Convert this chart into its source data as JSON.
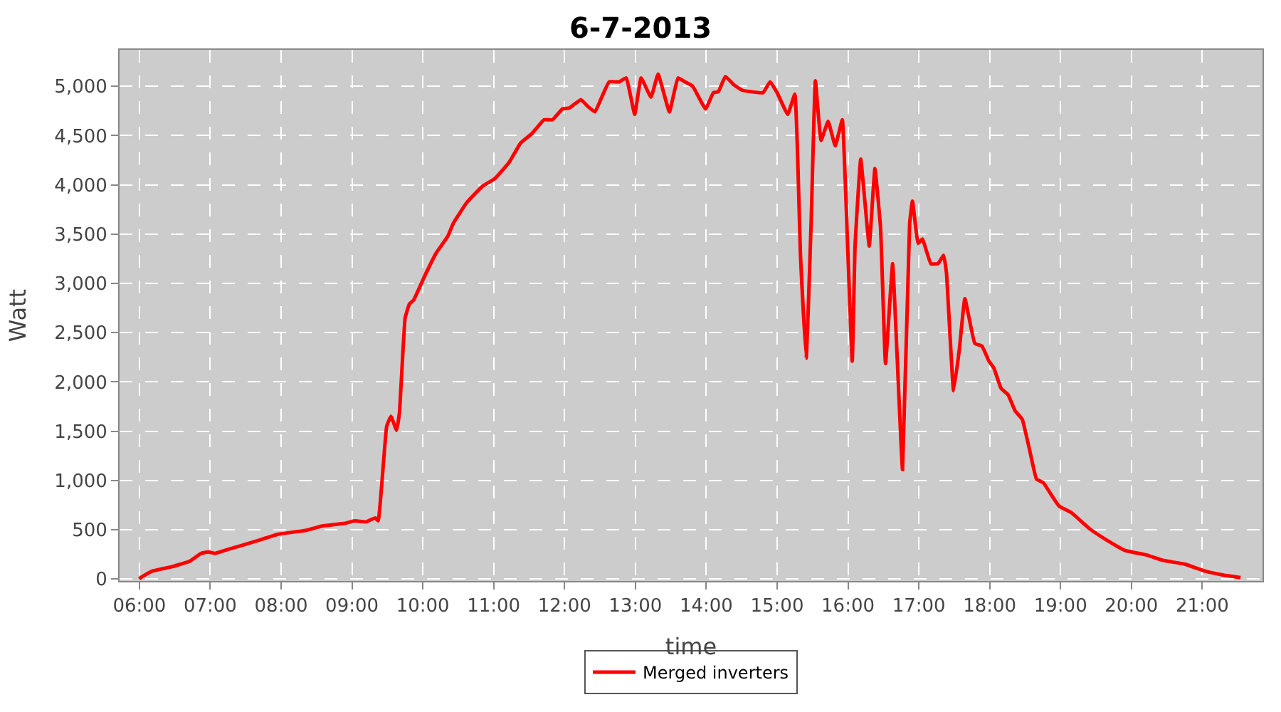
{
  "chart_data": {
    "type": "line",
    "title": "6-7-2013",
    "xlabel": "time",
    "ylabel": "Watt",
    "x": [
      6.0,
      6.02,
      6.18,
      6.46,
      6.71,
      6.87,
      6.97,
      7.07,
      7.25,
      7.65,
      7.96,
      8.36,
      8.56,
      8.9,
      9.04,
      9.2,
      9.33,
      9.37,
      9.49,
      9.55,
      9.63,
      9.67,
      9.75,
      9.81,
      9.87,
      10.03,
      10.19,
      10.35,
      10.43,
      10.62,
      10.84,
      11.02,
      11.22,
      11.38,
      11.54,
      11.71,
      11.83,
      11.97,
      12.07,
      12.23,
      12.33,
      12.43,
      12.51,
      12.63,
      12.77,
      12.87,
      12.99,
      13.08,
      13.22,
      13.32,
      13.48,
      13.6,
      13.7,
      13.81,
      13.99,
      14.1,
      14.17,
      14.27,
      14.39,
      14.51,
      14.8,
      14.9,
      15.0,
      15.15,
      15.25,
      15.33,
      15.41,
      15.48,
      15.54,
      15.62,
      15.72,
      15.82,
      15.92,
      15.96,
      16.06,
      16.1,
      16.18,
      16.3,
      16.38,
      16.46,
      16.53,
      16.63,
      16.69,
      16.77,
      16.87,
      16.91,
      16.99,
      17.05,
      17.17,
      17.27,
      17.35,
      17.39,
      17.49,
      17.57,
      17.65,
      17.79,
      17.89,
      17.99,
      18.06,
      18.16,
      18.26,
      18.36,
      18.46,
      18.56,
      18.66,
      18.76,
      18.86,
      18.98,
      19.15,
      19.41,
      19.64,
      19.91,
      20.21,
      20.44,
      20.76,
      21.04,
      21.3,
      21.54
    ],
    "series": [
      {
        "name": "Merged inverters",
        "color": "#ff0000",
        "values": [
          0,
          15,
          80,
          125,
          180,
          260,
          275,
          260,
          300,
          385,
          455,
          495,
          535,
          565,
          590,
          580,
          620,
          590,
          1550,
          1650,
          1510,
          1690,
          2650,
          2790,
          2830,
          3080,
          3310,
          3475,
          3610,
          3820,
          3985,
          4065,
          4230,
          4425,
          4520,
          4660,
          4660,
          4770,
          4780,
          4865,
          4795,
          4740,
          4865,
          5045,
          5045,
          5085,
          4715,
          5085,
          4890,
          5125,
          4740,
          5085,
          5045,
          5000,
          4770,
          4935,
          4945,
          5100,
          5015,
          4960,
          4935,
          5045,
          4935,
          4715,
          4920,
          3285,
          2240,
          3610,
          5055,
          4450,
          4645,
          4395,
          4660,
          4065,
          2210,
          3380,
          4260,
          3380,
          4165,
          3560,
          2185,
          3200,
          2320,
          1110,
          3610,
          3835,
          3405,
          3450,
          3200,
          3200,
          3285,
          3105,
          1910,
          2320,
          2845,
          2390,
          2365,
          2210,
          2140,
          1935,
          1870,
          1705,
          1620,
          1320,
          1015,
          975,
          865,
          740,
          675,
          510,
          400,
          290,
          245,
          190,
          150,
          80,
          40,
          15
        ]
      }
    ],
    "xlim": [
      5.72,
      21.85
    ],
    "xticks": [
      {
        "value": 6,
        "label": "06:00"
      },
      {
        "value": 7,
        "label": "07:00"
      },
      {
        "value": 8,
        "label": "08:00"
      },
      {
        "value": 9,
        "label": "09:00"
      },
      {
        "value": 10,
        "label": "10:00"
      },
      {
        "value": 11,
        "label": "11:00"
      },
      {
        "value": 12,
        "label": "12:00"
      },
      {
        "value": 13,
        "label": "13:00"
      },
      {
        "value": 14,
        "label": "14:00"
      },
      {
        "value": 15,
        "label": "15:00"
      },
      {
        "value": 16,
        "label": "16:00"
      },
      {
        "value": 17,
        "label": "17:00"
      },
      {
        "value": 18,
        "label": "18:00"
      },
      {
        "value": 19,
        "label": "19:00"
      },
      {
        "value": 20,
        "label": "20:00"
      },
      {
        "value": 21,
        "label": "21:00"
      }
    ],
    "ylim": [
      -20,
      5370
    ],
    "yticks": [
      0,
      500,
      {
        "value": 1000,
        "label": "1,000"
      },
      {
        "value": 1500,
        "label": "1,500"
      },
      {
        "value": 2000,
        "label": "2,000"
      },
      {
        "value": 2500,
        "label": "2,500"
      },
      {
        "value": 3000,
        "label": "3,000"
      },
      {
        "value": 3500,
        "label": "3,500"
      },
      {
        "value": 4000,
        "label": "4,000"
      },
      {
        "value": 4500,
        "label": "4,500"
      },
      {
        "value": 5000,
        "label": "5,000"
      }
    ],
    "grid": true,
    "legend": "bottom",
    "marker": "none",
    "line_style": "solid"
  }
}
